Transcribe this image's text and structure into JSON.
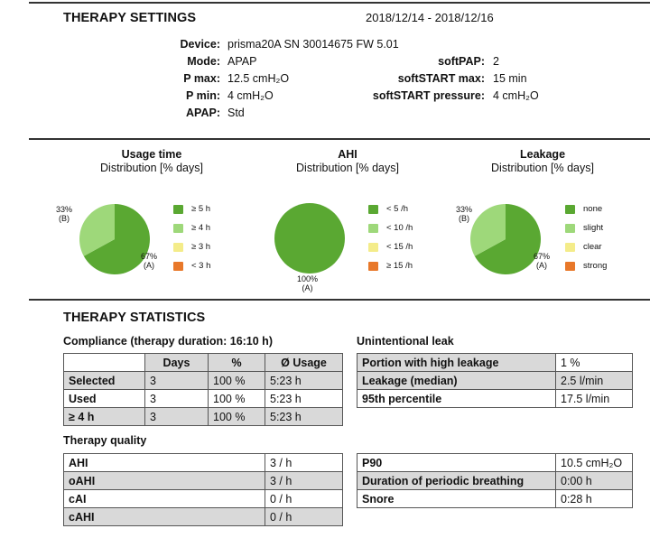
{
  "settings": {
    "title": "THERAPY SETTINGS",
    "date_range": "2018/12/14 - 2018/12/16",
    "left": [
      {
        "label": "Device:",
        "value": "prisma20A SN 30014675 FW 5.01"
      },
      {
        "label": "Mode:",
        "value": "APAP"
      },
      {
        "label": "P max:",
        "value": "12.5 cmH₂O"
      },
      {
        "label": "P min:",
        "value": "4 cmH₂O"
      },
      {
        "label": "APAP:",
        "value": "Std"
      }
    ],
    "right": [
      {
        "label": "softPAP:",
        "value": "2"
      },
      {
        "label": "softSTART max:",
        "value": "15 min"
      },
      {
        "label": "softSTART pressure:",
        "value": "4 cmH₂O"
      }
    ]
  },
  "charts": {
    "usage": {
      "title": "Usage time",
      "subtitle": "Distribution [% days]",
      "slice_labels": [
        {
          "pct": "67%",
          "cat": "(A)"
        },
        {
          "pct": "33%",
          "cat": "(B)"
        }
      ],
      "legend": [
        "≥ 5 h",
        "≥ 4 h",
        "≥ 3 h",
        "< 3 h"
      ]
    },
    "ahi": {
      "title": "AHI",
      "subtitle": "Distribution [% days]",
      "slice_labels": [
        {
          "pct": "100%",
          "cat": "(A)"
        }
      ],
      "legend": [
        "< 5 /h",
        "< 10 /h",
        "< 15 /h",
        "≥ 15 /h"
      ]
    },
    "leakage": {
      "title": "Leakage",
      "subtitle": "Distribution [% days]",
      "slice_labels": [
        {
          "pct": "67%",
          "cat": "(A)"
        },
        {
          "pct": "33%",
          "cat": "(B)"
        }
      ],
      "legend": [
        "none",
        "slight",
        "clear",
        "strong"
      ]
    },
    "legend_colors": [
      "#5aa832",
      "#9ed87a",
      "#f4ec8a",
      "#e8782a"
    ],
    "slice_colors": [
      "#5aa832",
      "#9ed87a"
    ]
  },
  "chart_data": [
    {
      "type": "pie",
      "title": "Usage time",
      "subtitle": "Distribution [% days]",
      "categories": [
        "(A)",
        "(B)"
      ],
      "values": [
        67,
        33
      ],
      "legend": [
        "≥ 5 h",
        "≥ 4 h",
        "≥ 3 h",
        "< 3 h"
      ]
    },
    {
      "type": "pie",
      "title": "AHI",
      "subtitle": "Distribution [% days]",
      "categories": [
        "(A)"
      ],
      "values": [
        100
      ],
      "legend": [
        "< 5 /h",
        "< 10 /h",
        "< 15 /h",
        "≥ 15 /h"
      ]
    },
    {
      "type": "pie",
      "title": "Leakage",
      "subtitle": "Distribution [% days]",
      "categories": [
        "(A)",
        "(B)"
      ],
      "values": [
        67,
        33
      ],
      "legend": [
        "none",
        "slight",
        "clear",
        "strong"
      ]
    }
  ],
  "statistics": {
    "title": "THERAPY STATISTICS",
    "compliance": {
      "title": "Compliance (therapy duration: 16:10 h)",
      "headers": [
        "",
        "Days",
        "%",
        "Ø Usage"
      ],
      "rows": [
        [
          "Selected",
          "3",
          "100 %",
          "5:23 h"
        ],
        [
          "Used",
          "3",
          "100 %",
          "5:23 h"
        ],
        [
          "≥ 4 h",
          "3",
          "100 %",
          "5:23 h"
        ]
      ]
    },
    "leak": {
      "title": "Unintentional leak",
      "rows": [
        [
          "Portion with high leakage",
          "1 %"
        ],
        [
          "Leakage (median)",
          "2.5 l/min"
        ],
        [
          "95th percentile",
          "17.5 l/min"
        ]
      ]
    },
    "quality": {
      "title": "Therapy quality",
      "rows": [
        [
          "AHI",
          "3 / h"
        ],
        [
          "oAHI",
          "3 / h"
        ],
        [
          "cAI",
          "0 / h"
        ],
        [
          "cAHI",
          "0 / h"
        ]
      ]
    },
    "other": {
      "rows": [
        [
          "P90",
          "10.5 cmH₂O"
        ],
        [
          "Duration of periodic breathing",
          "0:00 h"
        ],
        [
          "Snore",
          "0:28 h"
        ]
      ]
    }
  }
}
